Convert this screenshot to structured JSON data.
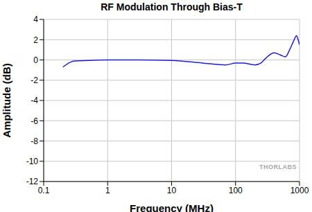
{
  "chart_data": {
    "type": "line",
    "title": "RF Modulation Through Bias-T",
    "x_label": "Frequency (MHz)",
    "y_label": "Amplitude (dB)",
    "annotations": [
      "THORLABS"
    ],
    "x": [
      0.2,
      0.3,
      0.5,
      1,
      3,
      10,
      30,
      70,
      100,
      130,
      200,
      250,
      300,
      400,
      500,
      600,
      700,
      800,
      900,
      950,
      1000
    ],
    "series": [
      {
        "name": "Amplitude",
        "color": "#1f1fd0",
        "values": [
          -0.7,
          -0.1,
          -0.05,
          0,
          0,
          -0.05,
          -0.3,
          -0.5,
          -0.3,
          -0.3,
          -0.5,
          -0.3,
          0.2,
          0.7,
          0.5,
          0.3,
          1.0,
          1.8,
          2.4,
          2.0,
          1.5
        ]
      }
    ],
    "xlim": [
      0.1,
      1000
    ],
    "xticks": [
      0.1,
      1,
      10,
      100,
      1000
    ],
    "ylim": [
      -12,
      4
    ],
    "yticks": [
      -12,
      -10,
      -8,
      -6,
      -4,
      -2,
      0,
      2,
      4
    ],
    "log": "x",
    "grid": true
  }
}
